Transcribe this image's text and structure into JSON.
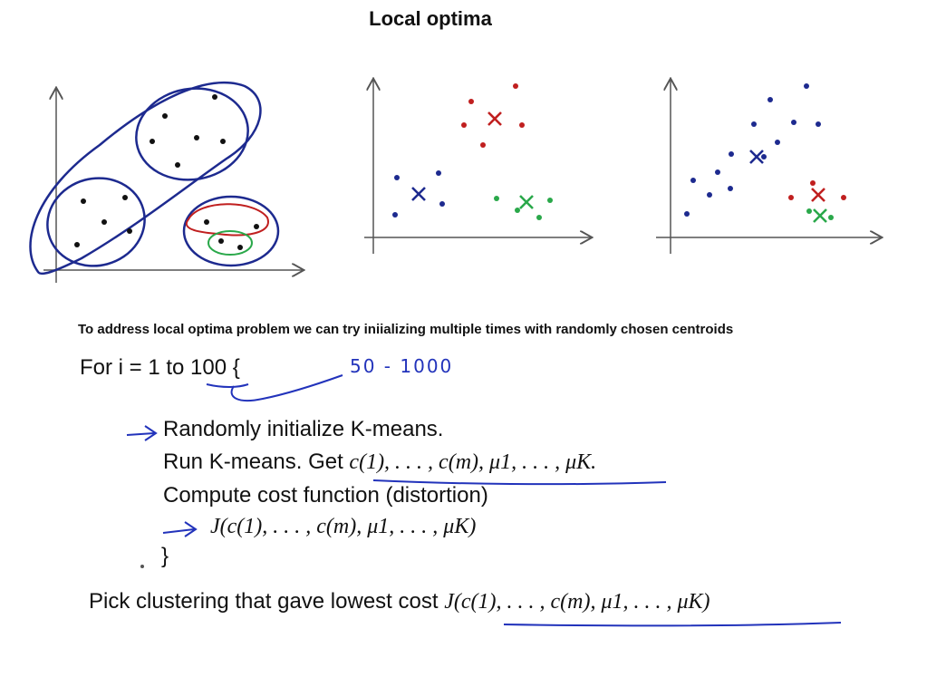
{
  "title": "Local optima",
  "note": "To address local optima problem we can try iniializing multiple times with randomly chosen centroids",
  "loop": {
    "for_text": "For i = 1 to 100 {",
    "handwritten_range": "50 - 1000",
    "step_randomize": "Randomly initialize K-means.",
    "step_run_prefix": "Run K-means. Get",
    "step_run_math": "c(1), . . . , c(m), μ1, . . . , μK.",
    "step_compute": "Compute cost function (distortion)",
    "cost_expression": "J(c(1), . . . , c(m), μ1, . . . , μK)",
    "close_brace": "}"
  },
  "pick": {
    "text": "Pick clustering that gave lowest cost",
    "math": "J(c(1), . . . , c(m), μ1, . . . , μK)"
  },
  "colors": {
    "blue": "#1d2a8f",
    "red": "#c01f1f",
    "green": "#2aa84a",
    "ink": "#2233bb",
    "black": "#111111"
  }
}
